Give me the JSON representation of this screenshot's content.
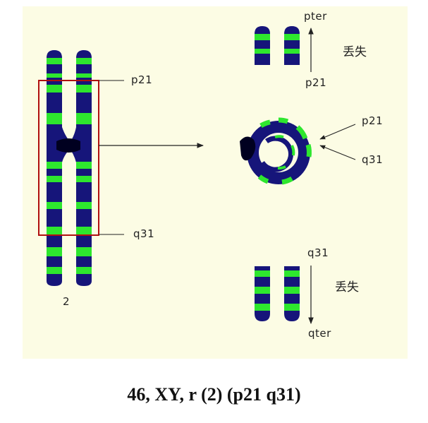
{
  "labels": {
    "p21_left": "p21",
    "q31_left": "q31",
    "chrom_number": "2",
    "pter": "pter",
    "lost_top": "丢失",
    "p21_top": "p21",
    "p21_ring": "p21",
    "q31_ring": "q31",
    "q31_bottom": "q31",
    "lost_bottom": "丢失",
    "qter": "qter"
  },
  "caption": "46, XY, r (2) (p21 q31)",
  "colors": {
    "background": "#fcfce4",
    "chromosome": "#16157a",
    "band": "#2ee62e",
    "box": "#b01010"
  }
}
